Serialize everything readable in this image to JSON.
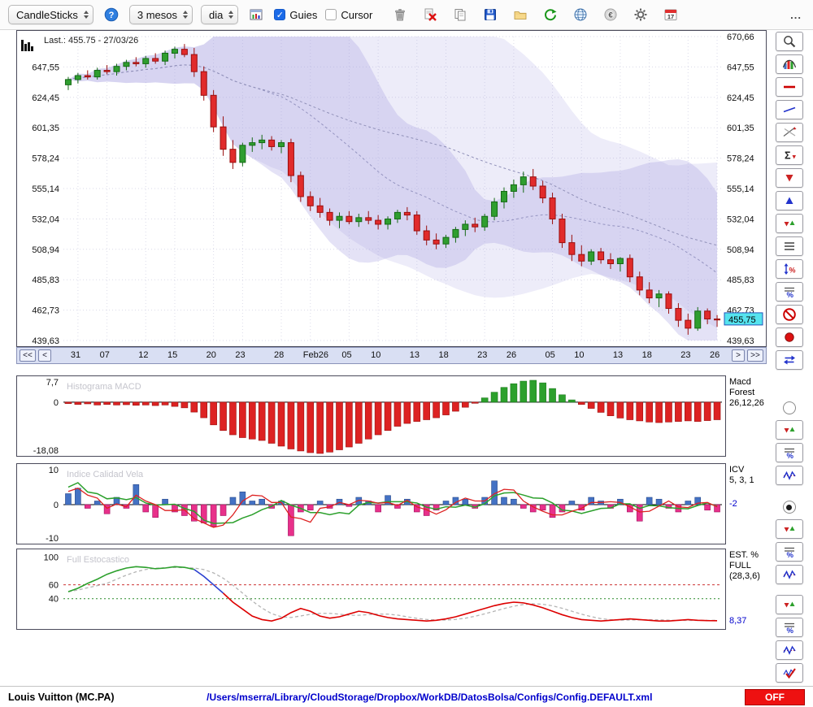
{
  "toolbar": {
    "chart_type_select": "CandleSticks",
    "period_select": "3 mesos",
    "interval_select": "dia",
    "guies_label": "Guies",
    "cursor_label": "Cursor",
    "guies_checked": true,
    "cursor_checked": false,
    "icons": [
      "trash",
      "delete",
      "copy",
      "save",
      "folder",
      "refresh",
      "globe",
      "euro",
      "gear",
      "calendar"
    ],
    "calendar_day": "17",
    "overflow_label": "..."
  },
  "main_chart": {
    "last_label": "Last.: 455.75 - 27/03/26",
    "last_price_tag": "455,75",
    "nav": {
      "first": "<<",
      "prev": "<",
      "next": ">",
      "last": ">>"
    }
  },
  "panels": {
    "macd": {
      "title": "Histograma MACD",
      "y_top": "7,7",
      "y_zero": "0",
      "y_bottom": "-18,08",
      "right_lines": [
        "Macd",
        "Forest",
        "26,12,26"
      ]
    },
    "icv": {
      "title": "Indice Calidad Vela",
      "y_top": "10",
      "y_zero": "0",
      "y_bottom": "-10",
      "right_lines": [
        "ICV",
        "5, 3, 1"
      ],
      "value": "-2"
    },
    "stoch": {
      "title": "Full Estocastico",
      "y_labels": [
        "100",
        "60",
        "40"
      ],
      "y_label_values": [
        100,
        60,
        40
      ],
      "right_lines": [
        "EST. %",
        "FULL",
        "(28,3,6)"
      ],
      "value": "8,37"
    }
  },
  "right_toolbar": {
    "main": [
      "magnifier",
      "distribution",
      "red-line",
      "blue-line",
      "trend-lines",
      "sigma",
      "arrow-down",
      "arrow-up",
      "arrows-pair",
      "h-lines",
      "scale-percent",
      "lines-percent",
      "no-entry",
      "record",
      "swap"
    ],
    "macd_group": {
      "radio": "off",
      "buttons": [
        "arrows-pair",
        "lines-percent",
        "wave"
      ]
    },
    "icv_group": {
      "radio": "on",
      "buttons": [
        "arrows-pair",
        "lines-percent",
        "wave"
      ]
    },
    "stoch_group": {
      "buttons": [
        "arrows-pair",
        "lines-percent",
        "wave",
        "wave-check"
      ]
    }
  },
  "status_bar": {
    "symbol": "Louis Vuitton (MC.PA)",
    "config_path": "/Users/mserra/Library/CloudStorage/Dropbox/WorkDB/DatosBolsa/Configs/Config.DEFAULT.xml",
    "off_label": "OFF"
  },
  "colors": {
    "up": "#2f9e2f",
    "up_stroke": "#156a15",
    "down": "#e12b2b",
    "down_stroke": "#9a0f0f",
    "band": "#a79fe0",
    "sma": "#9090b8",
    "grid": "#d9d9e8",
    "macd_pos": "#2ca02c",
    "macd_neg": "#dd2222",
    "icv_pos": "#4472c4",
    "icv_neg": "#e8308a",
    "icv_line_green": "#2ca02c",
    "icv_line_red": "#dd2222",
    "stoch_green": "#2ca02c",
    "stoch_blue": "#2a3fd0",
    "stoch_red": "#dd0000",
    "stoch_gray": "#b4b4b4",
    "tag_bg": "#55e3ee",
    "value_blue": "#0000cc",
    "off_bg": "#ee1111"
  },
  "chart_data": [
    {
      "name": "price",
      "type": "candlestick",
      "title": "Louis Vuitton (MC.PA), daily candles over 3 months with Bollinger bands",
      "ylim": [
        439.63,
        670.66
      ],
      "last": 455.75,
      "y_ticks": {
        "values": [
          670.66,
          647.55,
          624.45,
          601.35,
          578.24,
          555.14,
          532.04,
          508.94,
          485.83,
          462.73,
          439.63
        ],
        "labels": [
          "670,66",
          "647,55",
          "624,45",
          "601,35",
          "578,24",
          "555,14",
          "532,04",
          "508,94",
          "485,83",
          "462,73",
          "439,63"
        ]
      },
      "x_ticks": {
        "indices": [
          1,
          4,
          8,
          11,
          15,
          18,
          22,
          25,
          29,
          32,
          36,
          39,
          43,
          46,
          50,
          53,
          57,
          60,
          64,
          67
        ],
        "labels": [
          "31",
          "07",
          "12",
          "15",
          "20",
          "23",
          "28",
          "Feb26",
          "05",
          "10",
          "13",
          "18",
          "23",
          "26",
          "05",
          "10",
          "13",
          "18",
          "23",
          "26"
        ]
      },
      "candles": [
        [
          634,
          640,
          630,
          638
        ],
        [
          638,
          643,
          635,
          641
        ],
        [
          641,
          645,
          638,
          640
        ],
        [
          640,
          647,
          638,
          645
        ],
        [
          645,
          649,
          642,
          644
        ],
        [
          644,
          650,
          641,
          648
        ],
        [
          648,
          653,
          645,
          651
        ],
        [
          651,
          655,
          648,
          650
        ],
        [
          650,
          656,
          647,
          654
        ],
        [
          654,
          658,
          650,
          652
        ],
        [
          652,
          660,
          649,
          658
        ],
        [
          658,
          663,
          654,
          661
        ],
        [
          661,
          665,
          655,
          657
        ],
        [
          657,
          662,
          640,
          644
        ],
        [
          644,
          648,
          622,
          626
        ],
        [
          626,
          630,
          598,
          602
        ],
        [
          602,
          610,
          580,
          585
        ],
        [
          585,
          592,
          570,
          575
        ],
        [
          575,
          590,
          572,
          588
        ],
        [
          588,
          594,
          583,
          590
        ],
        [
          590,
          596,
          585,
          592
        ],
        [
          592,
          595,
          584,
          587
        ],
        [
          587,
          592,
          582,
          590
        ],
        [
          590,
          593,
          560,
          565
        ],
        [
          565,
          568,
          545,
          549
        ],
        [
          549,
          553,
          538,
          542
        ],
        [
          542,
          548,
          533,
          537
        ],
        [
          537,
          540,
          527,
          531
        ],
        [
          531,
          537,
          525,
          534
        ],
        [
          534,
          538,
          528,
          530
        ],
        [
          530,
          536,
          526,
          533
        ],
        [
          533,
          538,
          528,
          531
        ],
        [
          531,
          535,
          524,
          528
        ],
        [
          528,
          534,
          524,
          532
        ],
        [
          532,
          539,
          529,
          537
        ],
        [
          537,
          541,
          531,
          535
        ],
        [
          535,
          538,
          520,
          523
        ],
        [
          523,
          527,
          512,
          516
        ],
        [
          516,
          521,
          509,
          513
        ],
        [
          513,
          520,
          510,
          518
        ],
        [
          518,
          526,
          514,
          524
        ],
        [
          524,
          531,
          519,
          528
        ],
        [
          528,
          533,
          522,
          526
        ],
        [
          526,
          536,
          523,
          534
        ],
        [
          534,
          548,
          531,
          545
        ],
        [
          545,
          556,
          540,
          553
        ],
        [
          553,
          562,
          548,
          558
        ],
        [
          558,
          568,
          552,
          564
        ],
        [
          564,
          570,
          554,
          557
        ],
        [
          557,
          561,
          544,
          548
        ],
        [
          548,
          552,
          528,
          532
        ],
        [
          532,
          536,
          510,
          514
        ],
        [
          514,
          520,
          500,
          505
        ],
        [
          505,
          512,
          496,
          500
        ],
        [
          500,
          509,
          497,
          507
        ],
        [
          507,
          510,
          498,
          501
        ],
        [
          501,
          506,
          494,
          498
        ],
        [
          498,
          503,
          492,
          502
        ],
        [
          502,
          505,
          484,
          488
        ],
        [
          488,
          492,
          474,
          478
        ],
        [
          478,
          484,
          468,
          472
        ],
        [
          472,
          478,
          465,
          475
        ],
        [
          475,
          477,
          460,
          464
        ],
        [
          464,
          468,
          450,
          455
        ],
        [
          455,
          460,
          444,
          449
        ],
        [
          449,
          465,
          447,
          462
        ],
        [
          462,
          464,
          452,
          456
        ],
        [
          456,
          459,
          450,
          455.75
        ]
      ]
    },
    {
      "name": "macd",
      "type": "bar",
      "title": "Histograma MACD",
      "ylim": [
        -18.08,
        7.7
      ],
      "values": [
        -0.5,
        -0.8,
        -0.6,
        -1.0,
        -0.8,
        -1.0,
        -0.9,
        -1.1,
        -1.0,
        -1.2,
        -1.0,
        -1.5,
        -2.0,
        -3.5,
        -5.5,
        -8.0,
        -10.0,
        -11.5,
        -12.5,
        -13.0,
        -13.5,
        -14.5,
        -15.5,
        -16.5,
        -17.2,
        -17.8,
        -18.08,
        -17.6,
        -16.8,
        -15.8,
        -14.5,
        -13.0,
        -11.5,
        -10.0,
        -8.5,
        -7.5,
        -6.8,
        -6.2,
        -5.5,
        -4.5,
        -3.2,
        -1.8,
        -0.4,
        1.5,
        3.5,
        5.2,
        6.5,
        7.4,
        7.7,
        6.8,
        4.8,
        2.6,
        0.8,
        -0.8,
        -2.2,
        -3.6,
        -4.8,
        -5.6,
        -6.2,
        -6.6,
        -7.0,
        -7.2,
        -7.0,
        -6.8,
        -6.6,
        -6.8,
        -6.5,
        -6.2
      ]
    },
    {
      "name": "icv",
      "type": "bar+line",
      "title": "Indice Calidad Vela",
      "ylim": [
        -10,
        10
      ],
      "values": [
        3,
        4.5,
        -1,
        1,
        -2.5,
        2,
        -1,
        5.5,
        -2,
        -3.5,
        1.5,
        -2,
        -3,
        -4.5,
        -5,
        -6,
        -3,
        2,
        3.5,
        1,
        1.5,
        -1,
        1,
        -8.5,
        -2,
        -1.5,
        1,
        -1,
        1.5,
        -0.5,
        2,
        1,
        -2,
        2.5,
        -1,
        1.5,
        -2,
        -3,
        -1.5,
        1,
        2,
        1.5,
        -1,
        2,
        6.5,
        2,
        1.5,
        -1,
        -2,
        -1.5,
        -3.5,
        -2,
        1,
        -1.5,
        2,
        1,
        -1,
        1.5,
        -2,
        -4.5,
        2,
        1.5,
        -1,
        -2,
        1,
        2,
        -1.5,
        -2
      ]
    },
    {
      "name": "stoch",
      "type": "line",
      "title": "Full Estocastico",
      "ylim": [
        0,
        105
      ],
      "last": 8.37,
      "guides": {
        "red": 60,
        "green": 40
      },
      "segments": [
        {
          "from": 0,
          "to": 13,
          "color": "green"
        },
        {
          "from": 13,
          "to": 16,
          "color": "blue"
        },
        {
          "from": 16,
          "to": 67,
          "color": "red"
        }
      ],
      "k": [
        50,
        55,
        62,
        68,
        75,
        80,
        84,
        86,
        85,
        83,
        84,
        86,
        85,
        82,
        72,
        60,
        48,
        35,
        25,
        15,
        10,
        8,
        12,
        20,
        26,
        22,
        15,
        12,
        14,
        18,
        22,
        20,
        16,
        13,
        11,
        10,
        9,
        8,
        9,
        11,
        14,
        18,
        22,
        26,
        30,
        33,
        35,
        34,
        31,
        27,
        22,
        17,
        13,
        10,
        9,
        8,
        9,
        10,
        11,
        10,
        9,
        8,
        8,
        9,
        10,
        9,
        8.5,
        8.37
      ]
    }
  ]
}
